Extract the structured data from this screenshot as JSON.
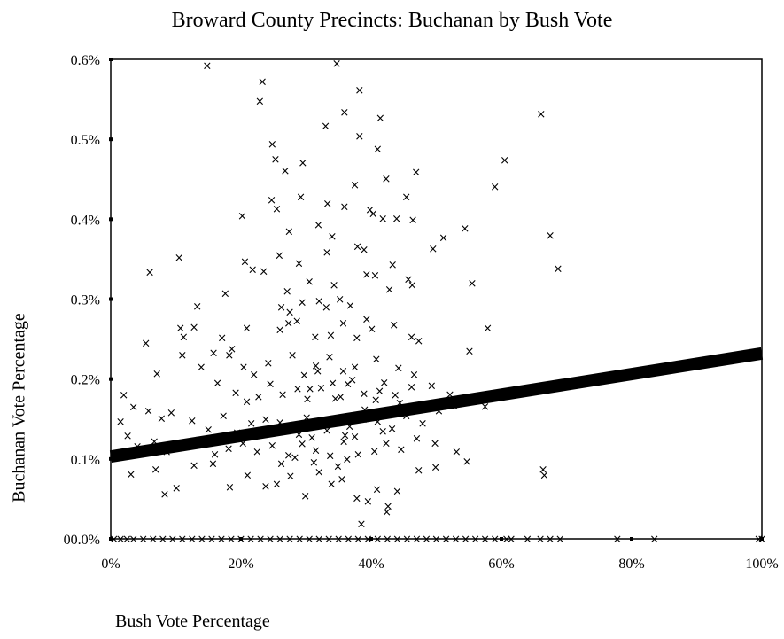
{
  "chart_data": {
    "type": "scatter",
    "title": "Broward County Precincts: Buchanan by Bush Vote",
    "xlabel": "Bush Vote Percentage",
    "ylabel": "Buchanan Vote Percentage",
    "xlim": [
      0,
      100
    ],
    "ylim": [
      0,
      0.6
    ],
    "x_ticks": [
      "0%",
      "20%",
      "40%",
      "60%",
      "80%",
      "100%"
    ],
    "y_ticks": [
      "00.0%",
      "0.1%",
      "0.2%",
      "0.3%",
      "0.4%",
      "0.5%",
      "0.6%"
    ],
    "x_tick_values": [
      0,
      20,
      40,
      60,
      80,
      100
    ],
    "y_tick_values": [
      0,
      0.1,
      0.2,
      0.3,
      0.4,
      0.5,
      0.6
    ],
    "marker": "×",
    "grid": false,
    "trend_line": {
      "x": [
        0,
        100
      ],
      "y": [
        0.103,
        0.232
      ]
    },
    "points": [
      [
        14.8,
        0.592
      ],
      [
        34.7,
        0.595
      ],
      [
        23.3,
        0.572
      ],
      [
        22.9,
        0.548
      ],
      [
        38.2,
        0.562
      ],
      [
        35.9,
        0.534
      ],
      [
        33.0,
        0.517
      ],
      [
        41.4,
        0.527
      ],
      [
        38.2,
        0.504
      ],
      [
        66.1,
        0.532
      ],
      [
        24.8,
        0.494
      ],
      [
        25.3,
        0.475
      ],
      [
        26.8,
        0.461
      ],
      [
        29.5,
        0.471
      ],
      [
        41.0,
        0.488
      ],
      [
        60.5,
        0.474
      ],
      [
        46.9,
        0.459
      ],
      [
        59.0,
        0.441
      ],
      [
        42.3,
        0.451
      ],
      [
        37.5,
        0.443
      ],
      [
        24.7,
        0.424
      ],
      [
        25.5,
        0.413
      ],
      [
        29.2,
        0.428
      ],
      [
        33.3,
        0.42
      ],
      [
        35.9,
        0.416
      ],
      [
        39.8,
        0.412
      ],
      [
        40.3,
        0.407
      ],
      [
        45.4,
        0.428
      ],
      [
        20.2,
        0.404
      ],
      [
        41.8,
        0.401
      ],
      [
        43.9,
        0.401
      ],
      [
        46.4,
        0.399
      ],
      [
        54.4,
        0.389
      ],
      [
        67.5,
        0.38
      ],
      [
        51.1,
        0.377
      ],
      [
        10.5,
        0.352
      ],
      [
        27.4,
        0.385
      ],
      [
        31.9,
        0.393
      ],
      [
        34.0,
        0.379
      ],
      [
        20.6,
        0.347
      ],
      [
        21.8,
        0.337
      ],
      [
        23.5,
        0.335
      ],
      [
        25.9,
        0.355
      ],
      [
        28.9,
        0.345
      ],
      [
        33.2,
        0.359
      ],
      [
        37.9,
        0.366
      ],
      [
        38.9,
        0.362
      ],
      [
        39.3,
        0.331
      ],
      [
        40.6,
        0.33
      ],
      [
        43.3,
        0.343
      ],
      [
        45.7,
        0.325
      ],
      [
        49.5,
        0.363
      ],
      [
        68.7,
        0.338
      ],
      [
        6.0,
        0.334
      ],
      [
        13.3,
        0.291
      ],
      [
        17.6,
        0.307
      ],
      [
        27.1,
        0.31
      ],
      [
        30.5,
        0.322
      ],
      [
        34.3,
        0.318
      ],
      [
        35.2,
        0.3
      ],
      [
        55.5,
        0.32
      ],
      [
        26.2,
        0.29
      ],
      [
        27.5,
        0.284
      ],
      [
        29.4,
        0.296
      ],
      [
        32.0,
        0.298
      ],
      [
        33.1,
        0.29
      ],
      [
        36.8,
        0.292
      ],
      [
        39.3,
        0.275
      ],
      [
        42.8,
        0.312
      ],
      [
        46.3,
        0.318
      ],
      [
        5.4,
        0.245
      ],
      [
        10.7,
        0.264
      ],
      [
        11.2,
        0.253
      ],
      [
        12.8,
        0.265
      ],
      [
        17.1,
        0.252
      ],
      [
        18.6,
        0.238
      ],
      [
        20.9,
        0.264
      ],
      [
        26.0,
        0.262
      ],
      [
        27.3,
        0.27
      ],
      [
        28.6,
        0.273
      ],
      [
        31.4,
        0.253
      ],
      [
        33.8,
        0.255
      ],
      [
        35.7,
        0.27
      ],
      [
        37.8,
        0.252
      ],
      [
        40.1,
        0.263
      ],
      [
        43.5,
        0.268
      ],
      [
        46.2,
        0.253
      ],
      [
        47.3,
        0.248
      ],
      [
        57.9,
        0.264
      ],
      [
        7.1,
        0.207
      ],
      [
        11.0,
        0.23
      ],
      [
        13.9,
        0.215
      ],
      [
        15.8,
        0.233
      ],
      [
        18.2,
        0.23
      ],
      [
        20.4,
        0.215
      ],
      [
        22.0,
        0.206
      ],
      [
        24.2,
        0.22
      ],
      [
        27.9,
        0.23
      ],
      [
        29.7,
        0.205
      ],
      [
        31.5,
        0.217
      ],
      [
        33.6,
        0.228
      ],
      [
        35.7,
        0.21
      ],
      [
        37.5,
        0.215
      ],
      [
        40.8,
        0.225
      ],
      [
        44.2,
        0.214
      ],
      [
        46.6,
        0.206
      ],
      [
        55.1,
        0.235
      ],
      [
        16.4,
        0.195
      ],
      [
        19.2,
        0.183
      ],
      [
        20.9,
        0.172
      ],
      [
        22.7,
        0.178
      ],
      [
        24.5,
        0.194
      ],
      [
        26.4,
        0.181
      ],
      [
        28.7,
        0.188
      ],
      [
        30.2,
        0.175
      ],
      [
        32.3,
        0.189
      ],
      [
        34.5,
        0.176
      ],
      [
        36.4,
        0.194
      ],
      [
        38.9,
        0.182
      ],
      [
        41.3,
        0.185
      ],
      [
        43.7,
        0.18
      ],
      [
        46.2,
        0.19
      ],
      [
        49.3,
        0.192
      ],
      [
        52.1,
        0.181
      ],
      [
        55.5,
        0.175
      ],
      [
        1.5,
        0.147
      ],
      [
        2.0,
        0.18
      ],
      [
        3.5,
        0.165
      ],
      [
        5.8,
        0.16
      ],
      [
        7.8,
        0.151
      ],
      [
        9.3,
        0.158
      ],
      [
        12.5,
        0.148
      ],
      [
        15.0,
        0.137
      ],
      [
        17.3,
        0.154
      ],
      [
        19.4,
        0.133
      ],
      [
        21.6,
        0.145
      ],
      [
        23.8,
        0.15
      ],
      [
        26.0,
        0.146
      ],
      [
        28.1,
        0.138
      ],
      [
        30.1,
        0.152
      ],
      [
        32.4,
        0.145
      ],
      [
        34.6,
        0.148
      ],
      [
        36.7,
        0.141
      ],
      [
        38.8,
        0.15
      ],
      [
        41.0,
        0.147
      ],
      [
        43.2,
        0.138
      ],
      [
        45.4,
        0.154
      ],
      [
        47.9,
        0.145
      ],
      [
        50.4,
        0.16
      ],
      [
        52.7,
        0.167
      ],
      [
        57.5,
        0.166
      ],
      [
        2.6,
        0.129
      ],
      [
        4.1,
        0.116
      ],
      [
        6.7,
        0.122
      ],
      [
        8.6,
        0.109
      ],
      [
        11.4,
        0.118
      ],
      [
        13.6,
        0.124
      ],
      [
        16.0,
        0.106
      ],
      [
        18.1,
        0.113
      ],
      [
        20.3,
        0.12
      ],
      [
        22.5,
        0.109
      ],
      [
        24.8,
        0.117
      ],
      [
        27.3,
        0.105
      ],
      [
        29.4,
        0.119
      ],
      [
        31.5,
        0.111
      ],
      [
        33.7,
        0.104
      ],
      [
        35.8,
        0.122
      ],
      [
        38.0,
        0.106
      ],
      [
        40.5,
        0.11
      ],
      [
        42.3,
        0.12
      ],
      [
        44.6,
        0.112
      ],
      [
        47.0,
        0.126
      ],
      [
        49.8,
        0.12
      ],
      [
        53.1,
        0.109
      ],
      [
        3.1,
        0.081
      ],
      [
        6.9,
        0.087
      ],
      [
        8.3,
        0.056
      ],
      [
        10.1,
        0.064
      ],
      [
        12.8,
        0.092
      ],
      [
        15.7,
        0.094
      ],
      [
        18.3,
        0.065
      ],
      [
        21.0,
        0.08
      ],
      [
        23.8,
        0.066
      ],
      [
        25.5,
        0.069
      ],
      [
        27.6,
        0.079
      ],
      [
        29.9,
        0.054
      ],
      [
        32.0,
        0.084
      ],
      [
        33.9,
        0.069
      ],
      [
        35.5,
        0.075
      ],
      [
        37.8,
        0.051
      ],
      [
        39.5,
        0.047
      ],
      [
        40.9,
        0.062
      ],
      [
        42.6,
        0.041
      ],
      [
        44.0,
        0.06
      ],
      [
        47.3,
        0.086
      ],
      [
        49.9,
        0.09
      ],
      [
        54.7,
        0.097
      ],
      [
        66.4,
        0.087
      ],
      [
        66.6,
        0.08
      ],
      [
        38.5,
        0.019
      ],
      [
        42.4,
        0.034
      ],
      [
        34.9,
        0.091
      ],
      [
        36.3,
        0.1
      ],
      [
        31.2,
        0.096
      ],
      [
        28.3,
        0.102
      ],
      [
        26.2,
        0.094
      ],
      [
        30.6,
        0.188
      ],
      [
        31.8,
        0.21
      ],
      [
        34.1,
        0.195
      ],
      [
        35.3,
        0.178
      ],
      [
        37.1,
        0.199
      ],
      [
        39.0,
        0.162
      ],
      [
        40.7,
        0.174
      ],
      [
        42.0,
        0.196
      ],
      [
        44.4,
        0.17
      ],
      [
        36.0,
        0.13
      ],
      [
        33.2,
        0.136
      ],
      [
        30.9,
        0.127
      ],
      [
        28.9,
        0.131
      ],
      [
        37.5,
        0.128
      ],
      [
        41.8,
        0.135
      ],
      [
        0.5,
        0.0
      ],
      [
        1.5,
        0.0
      ],
      [
        2.5,
        0.0
      ],
      [
        3.5,
        0.0
      ],
      [
        5.0,
        0.0
      ],
      [
        6.5,
        0.0
      ],
      [
        8.0,
        0.0
      ],
      [
        9.5,
        0.0
      ],
      [
        11.0,
        0.0
      ],
      [
        12.5,
        0.0
      ],
      [
        14.0,
        0.0
      ],
      [
        15.5,
        0.0
      ],
      [
        17.0,
        0.0
      ],
      [
        18.5,
        0.0
      ],
      [
        20.0,
        0.0
      ],
      [
        21.5,
        0.0
      ],
      [
        23.0,
        0.0
      ],
      [
        24.5,
        0.0
      ],
      [
        26.0,
        0.0
      ],
      [
        27.5,
        0.0
      ],
      [
        29.0,
        0.0
      ],
      [
        30.5,
        0.0
      ],
      [
        32.0,
        0.0
      ],
      [
        33.5,
        0.0
      ],
      [
        35.0,
        0.0
      ],
      [
        36.5,
        0.0
      ],
      [
        38.0,
        0.0
      ],
      [
        39.5,
        0.0
      ],
      [
        41.0,
        0.0
      ],
      [
        42.5,
        0.0
      ],
      [
        44.0,
        0.0
      ],
      [
        45.5,
        0.0
      ],
      [
        47.0,
        0.0
      ],
      [
        48.5,
        0.0
      ],
      [
        50.0,
        0.0
      ],
      [
        51.5,
        0.0
      ],
      [
        53.0,
        0.0
      ],
      [
        54.5,
        0.0
      ],
      [
        56.0,
        0.0
      ],
      [
        57.5,
        0.0
      ],
      [
        59.0,
        0.0
      ],
      [
        60.8,
        0.0
      ],
      [
        61.5,
        0.0
      ],
      [
        64.0,
        0.0
      ],
      [
        66.0,
        0.0
      ],
      [
        67.5,
        0.0
      ],
      [
        69.0,
        0.0
      ],
      [
        77.8,
        0.0
      ],
      [
        83.5,
        0.0
      ],
      [
        100.0,
        0.0
      ],
      [
        99.5,
        0.0
      ]
    ]
  }
}
